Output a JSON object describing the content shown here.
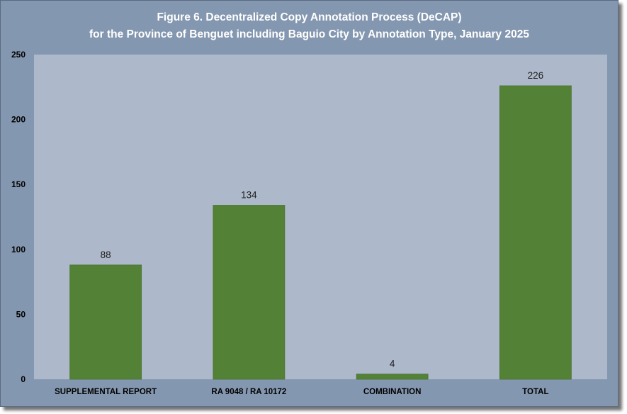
{
  "chart_data": {
    "type": "bar",
    "title_line1": "Figure 6. Decentralized Copy Annotation Process (DeCAP)",
    "title_line2": "for the Province of Benguet including Baguio City by Annotation Type, January 2025",
    "categories": [
      "SUPPLEMENTAL REPORT",
      "RA 9048 / RA 10172",
      "COMBINATION",
      "TOTAL"
    ],
    "values": [
      88,
      134,
      4,
      226
    ],
    "data_labels": [
      "88",
      "134",
      "4",
      "226"
    ],
    "yticks": [
      "0",
      "50",
      "100",
      "150",
      "200",
      "250"
    ],
    "ylim": [
      0,
      250
    ],
    "grid": false,
    "legend": "none",
    "colors": {
      "bar": "#538135",
      "plot_background": "#adb9ca",
      "frame_background": "#8497b0",
      "title_text": "#ffffff"
    }
  }
}
